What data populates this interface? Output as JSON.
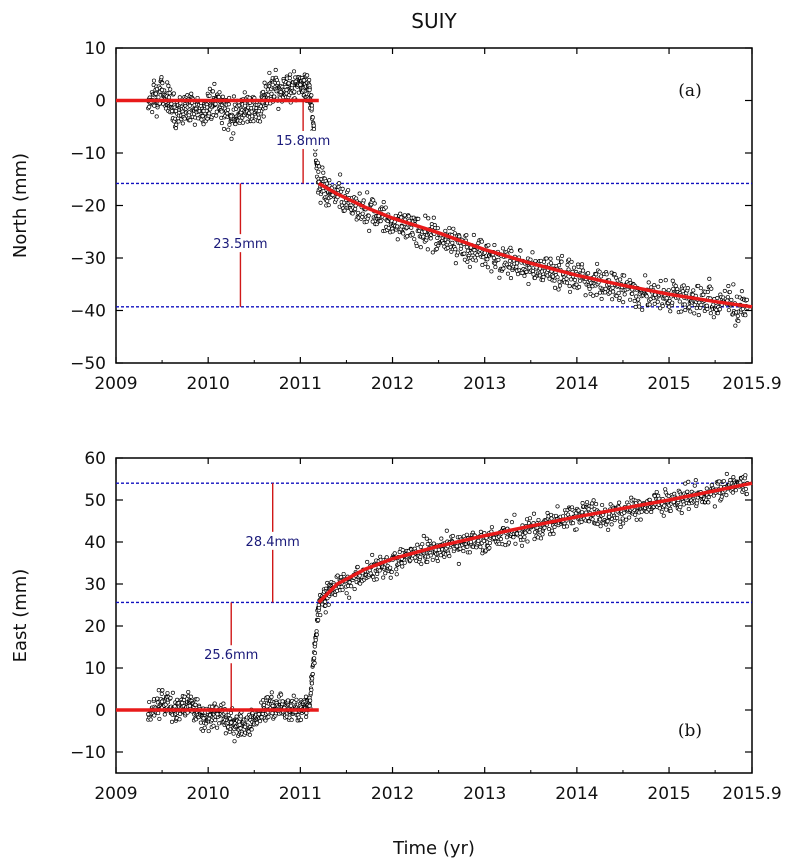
{
  "title": "SUIY",
  "xlabel": "Time (yr)",
  "chart_data": [
    {
      "type": "scatter",
      "panel": "(a)",
      "ylabel": "North (mm)",
      "xlim": [
        2009,
        2015.9
      ],
      "ylim": [
        -50,
        10
      ],
      "x_ticks": [
        2009,
        2010,
        2011,
        2012,
        2013,
        2014,
        2015,
        2015.9
      ],
      "x_tick_labels": [
        "2009",
        "2010",
        "2011",
        "2012",
        "2013",
        "2014",
        "2015",
        "2015.9"
      ],
      "y_ticks": [
        10,
        0,
        -10,
        -20,
        -30,
        -40,
        -50
      ],
      "y_tick_labels": [
        "10",
        "0",
        "−10",
        "−20",
        "−30",
        "−40",
        "−50"
      ],
      "grid": false,
      "series": [
        {
          "kind": "points",
          "marker": "open-circle",
          "color": "#000000",
          "x": [
            2009.35,
            2009.5,
            2009.65,
            2009.8,
            2009.95,
            2010.1,
            2010.25,
            2010.4,
            2010.55,
            2010.7,
            2010.85,
            2011.0,
            2011.1,
            2011.2,
            2011.35,
            2011.6,
            2011.85,
            2012.1,
            2012.35,
            2012.6,
            2012.85,
            2013.1,
            2013.35,
            2013.6,
            2013.85,
            2014.1,
            2014.35,
            2014.6,
            2014.85,
            2015.1,
            2015.35,
            2015.6,
            2015.85
          ],
          "y": [
            0,
            2,
            -2,
            -1,
            -2,
            0,
            -3,
            -1,
            -2,
            3,
            2,
            3,
            2,
            -15.5,
            -18,
            -20,
            -22,
            -24,
            -25,
            -27,
            -28,
            -30,
            -31,
            -32,
            -33,
            -34,
            -35,
            -36,
            -37,
            -37.5,
            -38,
            -38.5,
            -39.5
          ]
        },
        {
          "kind": "fit-line",
          "color": "#e81a1a",
          "x": [
            2009,
            2011.2,
            2011.2,
            2011.4,
            2011.7,
            2012.0,
            2012.5,
            2013.0,
            2013.5,
            2014.0,
            2014.5,
            2015.0,
            2015.5,
            2015.9
          ],
          "y": [
            0,
            0,
            -15.8,
            -17.8,
            -20.3,
            -22.4,
            -25.2,
            -28.4,
            -31.0,
            -33.3,
            -35.2,
            -36.9,
            -38.3,
            -39.3
          ]
        }
      ],
      "reference_lines": [
        {
          "kind": "dashed",
          "y": -15.8,
          "color": "#1010c0"
        },
        {
          "kind": "dashed",
          "y": -39.3,
          "color": "#1010c0"
        }
      ],
      "annotations": [
        {
          "text": "15.8mm",
          "x": 2011.03,
          "y_from": 0,
          "y_to": -15.8
        },
        {
          "text": "23.5mm",
          "x": 2010.35,
          "y_from": -15.8,
          "y_to": -39.3
        }
      ]
    },
    {
      "type": "scatter",
      "panel": "(b)",
      "ylabel": "East (mm)",
      "xlim": [
        2009,
        2015.9
      ],
      "ylim": [
        -15,
        60
      ],
      "x_ticks": [
        2009,
        2010,
        2011,
        2012,
        2013,
        2014,
        2015,
        2015.9
      ],
      "x_tick_labels": [
        "2009",
        "2010",
        "2011",
        "2012",
        "2013",
        "2014",
        "2015",
        "2015.9"
      ],
      "y_ticks": [
        60,
        50,
        40,
        30,
        20,
        10,
        0,
        -10
      ],
      "y_tick_labels": [
        "60",
        "50",
        "40",
        "30",
        "20",
        "10",
        "0",
        "−10"
      ],
      "grid": false,
      "series": [
        {
          "kind": "points",
          "marker": "open-circle",
          "color": "#000000",
          "x": [
            2009.35,
            2009.5,
            2009.65,
            2009.8,
            2009.95,
            2010.1,
            2010.25,
            2010.4,
            2010.55,
            2010.7,
            2010.85,
            2011.0,
            2011.1,
            2011.2,
            2011.35,
            2011.6,
            2011.85,
            2012.1,
            2012.35,
            2012.6,
            2012.85,
            2013.1,
            2013.35,
            2013.6,
            2013.85,
            2014.1,
            2014.35,
            2014.6,
            2014.85,
            2015.1,
            2015.35,
            2015.6,
            2015.85
          ],
          "y": [
            -1,
            2,
            0,
            1,
            -2,
            -1,
            -3,
            -4,
            -1,
            1,
            0,
            0,
            1,
            25,
            29,
            32,
            34,
            36,
            38,
            39,
            40,
            41,
            42,
            44,
            45,
            47,
            46,
            48,
            49,
            50,
            51,
            53,
            54
          ]
        },
        {
          "kind": "fit-line",
          "color": "#e81a1a",
          "x": [
            2009,
            2011.2,
            2011.2,
            2011.4,
            2011.7,
            2012.0,
            2012.5,
            2013.0,
            2013.5,
            2014.0,
            2014.5,
            2015.0,
            2015.5,
            2015.9
          ],
          "y": [
            0,
            0,
            25.6,
            30.0,
            33.5,
            36.0,
            39.0,
            41.5,
            43.8,
            46.0,
            48.0,
            50.0,
            52.2,
            54.0
          ]
        }
      ],
      "reference_lines": [
        {
          "kind": "dashed",
          "y": 25.6,
          "color": "#1010c0"
        },
        {
          "kind": "dashed",
          "y": 54.0,
          "color": "#1010c0"
        }
      ],
      "annotations": [
        {
          "text": "25.6mm",
          "x": 2010.25,
          "y_from": 0,
          "y_to": 25.6
        },
        {
          "text": "28.4mm",
          "x": 2010.7,
          "y_from": 25.6,
          "y_to": 54.0
        }
      ]
    }
  ]
}
